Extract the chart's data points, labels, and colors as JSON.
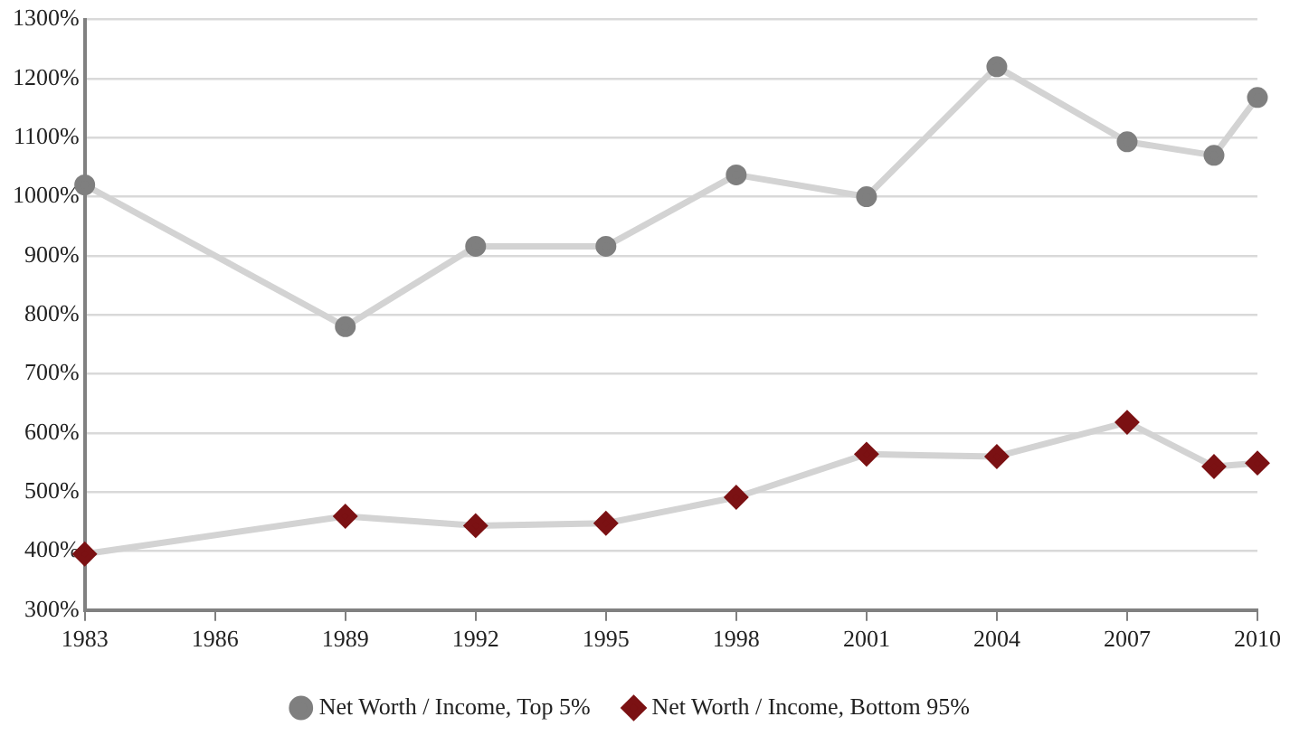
{
  "chart_data": {
    "type": "line",
    "x": [
      1983,
      1989,
      1992,
      1995,
      1998,
      2001,
      2004,
      2007,
      2009,
      2010
    ],
    "series": [
      {
        "name": "Net Worth / Income, Top 5%",
        "color": "#7f7f7f",
        "marker": "circle",
        "values": [
          1020,
          780,
          916,
          916,
          1037,
          1000,
          1220,
          1093,
          1070,
          1168
        ]
      },
      {
        "name": "Net Worth / Income, Bottom 95%",
        "color": "#7b1113",
        "marker": "diamond",
        "values": [
          395,
          459,
          443,
          447,
          491,
          564,
          560,
          618,
          543,
          549
        ]
      }
    ],
    "xlim": [
      1983,
      2010
    ],
    "xticks": [
      1983,
      1986,
      1989,
      1992,
      1995,
      1998,
      2001,
      2004,
      2007,
      2010
    ],
    "ylim": [
      300,
      1300
    ],
    "yticks": [
      {
        "value": 300,
        "label": "300%"
      },
      {
        "value": 400,
        "label": "400%"
      },
      {
        "value": 500,
        "label": "500%"
      },
      {
        "value": 600,
        "label": "600%"
      },
      {
        "value": 700,
        "label": "700%"
      },
      {
        "value": 800,
        "label": "800%"
      },
      {
        "value": 900,
        "label": "900%"
      },
      {
        "value": 1000,
        "label": "1000%"
      },
      {
        "value": 1100,
        "label": "1100%"
      },
      {
        "value": 1200,
        "label": "1200%"
      },
      {
        "value": 1300,
        "label": "1300%"
      }
    ],
    "grid": "y",
    "legend": "bottom",
    "line_style": "solid"
  }
}
